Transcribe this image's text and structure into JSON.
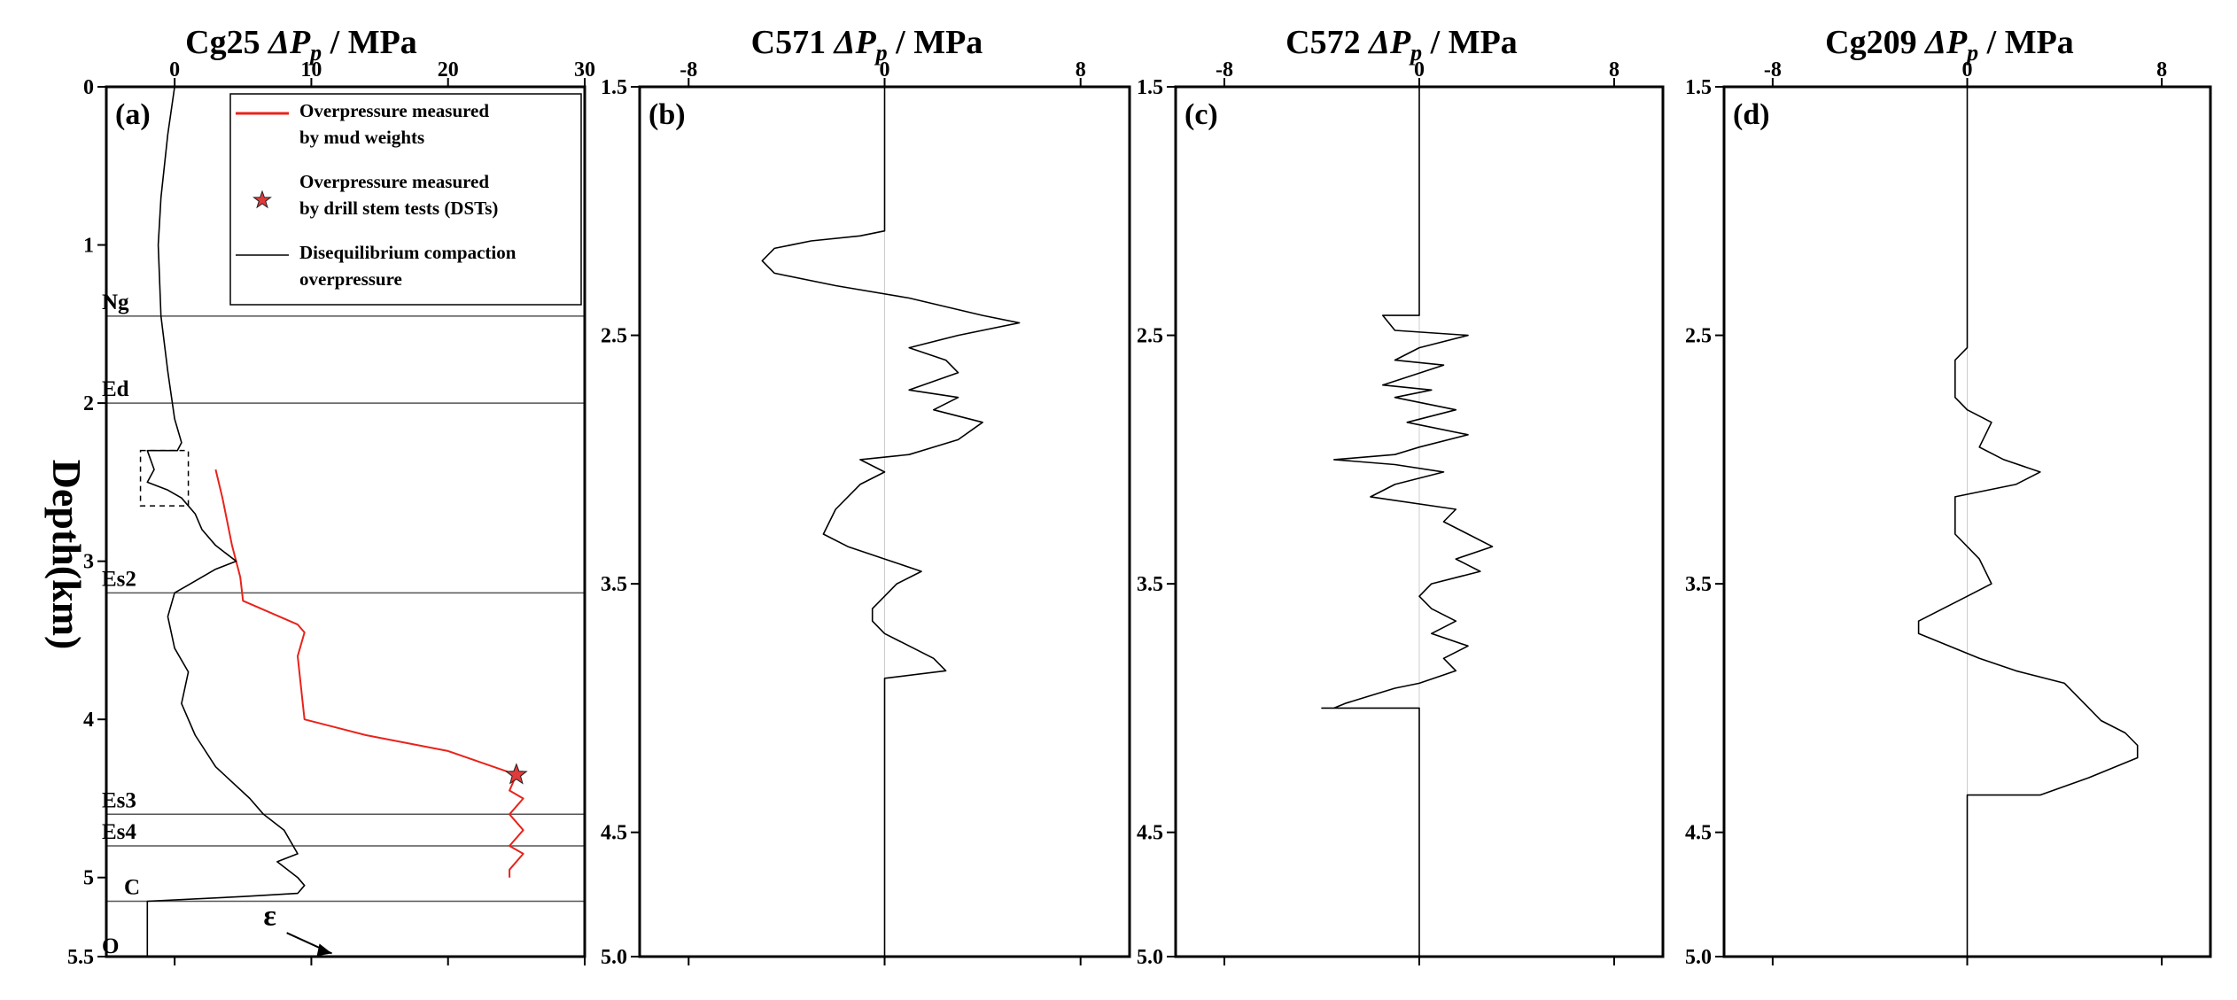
{
  "chart_data": [
    {
      "type": "line",
      "panel_label": "(a)",
      "title_well": "Cg25",
      "title_quantity": "ΔP",
      "title_subscript": "p",
      "title_unit": "/ MPa",
      "ylabel": "Depth(km)",
      "xlim": [
        -5,
        30
      ],
      "ylim": [
        5.5,
        0
      ],
      "xticks": [
        "0",
        "10",
        "20",
        "30"
      ],
      "yticks": [
        "0",
        "1",
        "2",
        "3",
        "4",
        "5",
        "5.5"
      ],
      "zones": [
        {
          "name": "Ng",
          "depth": 1.45
        },
        {
          "name": "Ed",
          "depth": 2.0
        },
        {
          "name": "Es2",
          "depth": 3.2
        },
        {
          "name": "Es3",
          "depth": 4.6
        },
        {
          "name": "Es4",
          "depth": 4.8
        },
        {
          "name": "C",
          "depth": 5.15
        },
        {
          "name": "O",
          "depth": 5.4
        }
      ],
      "annotation": "ε",
      "legend": [
        {
          "text": [
            "Overpressure measured",
            "by mud weights"
          ],
          "color": "#e8231b",
          "kind": "line"
        },
        {
          "text": [
            "Overpressure measured",
            "by drill stem tests (DSTs)"
          ],
          "color": "#e03a3a",
          "kind": "star"
        },
        {
          "text": [
            "Disequilibrium compaction",
            "overpressure"
          ],
          "color": "#000000",
          "kind": "line"
        }
      ],
      "series": [
        {
          "name": "Overpressure measured by mud weights",
          "color": "#e8231b",
          "points": [
            [
              3,
              2.42
            ],
            [
              3.5,
              2.6
            ],
            [
              4.2,
              2.9
            ],
            [
              4.8,
              3.1
            ],
            [
              5,
              3.25
            ],
            [
              9,
              3.4
            ],
            [
              9.5,
              3.45
            ],
            [
              9,
              3.6
            ],
            [
              9.5,
              4.0
            ],
            [
              14,
              4.1
            ],
            [
              20,
              4.2
            ],
            [
              25,
              4.35
            ],
            [
              24.5,
              4.45
            ],
            [
              25.5,
              4.5
            ],
            [
              24.5,
              4.6
            ],
            [
              25.5,
              4.7
            ],
            [
              24.5,
              4.8
            ],
            [
              25.5,
              4.85
            ],
            [
              24.5,
              4.95
            ],
            [
              24.5,
              5.0
            ]
          ]
        },
        {
          "name": "Overpressure measured by drill stem tests (DSTs)",
          "color": "#e03a3a",
          "marker": "star",
          "points": [
            [
              25,
              4.35
            ]
          ]
        },
        {
          "name": "Disequilibrium compaction overpressure",
          "color": "#000000",
          "points": [
            [
              0,
              0
            ],
            [
              -0.5,
              0.3
            ],
            [
              -1,
              0.7
            ],
            [
              -1.2,
              1.0
            ],
            [
              -1,
              1.45
            ],
            [
              -0.5,
              1.8
            ],
            [
              0,
              2.1
            ],
            [
              0.5,
              2.25
            ],
            [
              0.2,
              2.3
            ],
            [
              -2,
              2.3
            ],
            [
              -1.5,
              2.42
            ],
            [
              -2,
              2.5
            ],
            [
              -0.5,
              2.55
            ],
            [
              0.5,
              2.6
            ],
            [
              1.5,
              2.7
            ],
            [
              2,
              2.8
            ],
            [
              3,
              2.9
            ],
            [
              4.5,
              3.0
            ],
            [
              3,
              3.05
            ],
            [
              1,
              3.15
            ],
            [
              0,
              3.2
            ],
            [
              -0.5,
              3.35
            ],
            [
              0,
              3.55
            ],
            [
              1,
              3.7
            ],
            [
              0.5,
              3.9
            ],
            [
              1.5,
              4.1
            ],
            [
              3,
              4.3
            ],
            [
              5.5,
              4.5
            ],
            [
              6.5,
              4.6
            ],
            [
              8,
              4.7
            ],
            [
              9,
              4.85
            ],
            [
              7.5,
              4.9
            ],
            [
              9,
              5.0
            ],
            [
              9.5,
              5.05
            ],
            [
              9,
              5.1
            ],
            [
              5,
              5.12
            ],
            [
              -2,
              5.15
            ],
            [
              -2,
              5.5
            ]
          ]
        }
      ]
    },
    {
      "type": "line",
      "panel_label": "(b)",
      "title_well": "C571",
      "title_quantity": "ΔP",
      "title_subscript": "p",
      "title_unit": "/ MPa",
      "xlim": [
        -10,
        10
      ],
      "ylim": [
        5.0,
        1.5
      ],
      "xticks": [
        "-8",
        "0",
        "8"
      ],
      "yticks": [
        "1.5",
        "2.5",
        "3.5",
        "4.5",
        "5.0"
      ],
      "series": [
        {
          "name": "C571",
          "color": "#000000",
          "points": [
            [
              0,
              1.5
            ],
            [
              0,
              2.08
            ],
            [
              -1,
              2.1
            ],
            [
              -3,
              2.12
            ],
            [
              -4.5,
              2.15
            ],
            [
              -5,
              2.2
            ],
            [
              -4.5,
              2.25
            ],
            [
              -2,
              2.3
            ],
            [
              1,
              2.35
            ],
            [
              4,
              2.42
            ],
            [
              5.5,
              2.45
            ],
            [
              3,
              2.5
            ],
            [
              1,
              2.55
            ],
            [
              2.5,
              2.6
            ],
            [
              3,
              2.65
            ],
            [
              1,
              2.72
            ],
            [
              3,
              2.75
            ],
            [
              2,
              2.8
            ],
            [
              4,
              2.85
            ],
            [
              3,
              2.92
            ],
            [
              1,
              2.98
            ],
            [
              -1,
              3.0
            ],
            [
              0,
              3.05
            ],
            [
              -1,
              3.1
            ],
            [
              -2,
              3.2
            ],
            [
              -2.5,
              3.3
            ],
            [
              -1.5,
              3.35
            ],
            [
              0,
              3.4
            ],
            [
              1.5,
              3.45
            ],
            [
              0.5,
              3.5
            ],
            [
              -0.5,
              3.6
            ],
            [
              -0.5,
              3.65
            ],
            [
              0,
              3.7
            ],
            [
              2,
              3.8
            ],
            [
              2.5,
              3.85
            ],
            [
              0,
              3.88
            ],
            [
              0,
              5.0
            ]
          ]
        }
      ]
    },
    {
      "type": "line",
      "panel_label": "(c)",
      "title_well": "C572",
      "title_quantity": "ΔP",
      "title_subscript": "p",
      "title_unit": "/ MPa",
      "xlim": [
        -10,
        10
      ],
      "ylim": [
        5.0,
        1.5
      ],
      "xticks": [
        "-8",
        "0",
        "8"
      ],
      "yticks": [
        "1.5",
        "2.5",
        "3.5",
        "4.5",
        "5.0"
      ],
      "series": [
        {
          "name": "C572",
          "color": "#000000",
          "points": [
            [
              0,
              1.5
            ],
            [
              0,
              2.42
            ],
            [
              -1.5,
              2.42
            ],
            [
              -1,
              2.48
            ],
            [
              2,
              2.5
            ],
            [
              0,
              2.55
            ],
            [
              -1,
              2.6
            ],
            [
              1,
              2.62
            ],
            [
              -1.5,
              2.7
            ],
            [
              0.5,
              2.72
            ],
            [
              -1,
              2.75
            ],
            [
              1.5,
              2.8
            ],
            [
              -0.5,
              2.85
            ],
            [
              2,
              2.9
            ],
            [
              0,
              2.95
            ],
            [
              -1,
              2.98
            ],
            [
              -3.5,
              3.0
            ],
            [
              -1,
              3.02
            ],
            [
              1,
              3.05
            ],
            [
              -1,
              3.1
            ],
            [
              -2,
              3.15
            ],
            [
              1.5,
              3.2
            ],
            [
              1,
              3.25
            ],
            [
              2,
              3.3
            ],
            [
              3,
              3.35
            ],
            [
              1.5,
              3.4
            ],
            [
              2.5,
              3.45
            ],
            [
              0.5,
              3.5
            ],
            [
              0,
              3.55
            ],
            [
              0.5,
              3.6
            ],
            [
              1.5,
              3.65
            ],
            [
              0.5,
              3.7
            ],
            [
              2,
              3.75
            ],
            [
              1,
              3.8
            ],
            [
              1.5,
              3.85
            ],
            [
              0,
              3.9
            ],
            [
              -1,
              3.92
            ],
            [
              -2,
              3.95
            ],
            [
              -3,
              3.98
            ],
            [
              -3.5,
              4.0
            ],
            [
              -4,
              4.0
            ],
            [
              0,
              4.0
            ],
            [
              0,
              5.0
            ]
          ]
        }
      ]
    },
    {
      "type": "line",
      "panel_label": "(d)",
      "title_well": "Cg209",
      "title_quantity": "ΔP",
      "title_subscript": "p",
      "title_unit": "/ MPa",
      "xlim": [
        -10,
        10
      ],
      "ylim": [
        5.0,
        1.5
      ],
      "xticks": [
        "-8",
        "0",
        "8"
      ],
      "yticks": [
        "1.5",
        "2.5",
        "3.5",
        "4.5",
        "5.0"
      ],
      "series": [
        {
          "name": "Cg209",
          "color": "#000000",
          "points": [
            [
              0,
              1.5
            ],
            [
              0,
              2.55
            ],
            [
              -0.5,
              2.6
            ],
            [
              -0.5,
              2.75
            ],
            [
              0,
              2.8
            ],
            [
              1,
              2.85
            ],
            [
              0.5,
              2.95
            ],
            [
              1.5,
              3.0
            ],
            [
              3,
              3.05
            ],
            [
              2,
              3.1
            ],
            [
              -0.5,
              3.15
            ],
            [
              -0.5,
              3.3
            ],
            [
              0.5,
              3.4
            ],
            [
              1,
              3.5
            ],
            [
              0,
              3.55
            ],
            [
              -2,
              3.65
            ],
            [
              -2,
              3.7
            ],
            [
              0.5,
              3.8
            ],
            [
              2,
              3.85
            ],
            [
              4,
              3.9
            ],
            [
              5,
              4.0
            ],
            [
              5.5,
              4.05
            ],
            [
              6.5,
              4.1
            ],
            [
              7,
              4.15
            ],
            [
              7,
              4.2
            ],
            [
              5,
              4.28
            ],
            [
              3,
              4.35
            ],
            [
              0,
              4.35
            ],
            [
              0,
              5.0
            ]
          ]
        }
      ]
    }
  ]
}
